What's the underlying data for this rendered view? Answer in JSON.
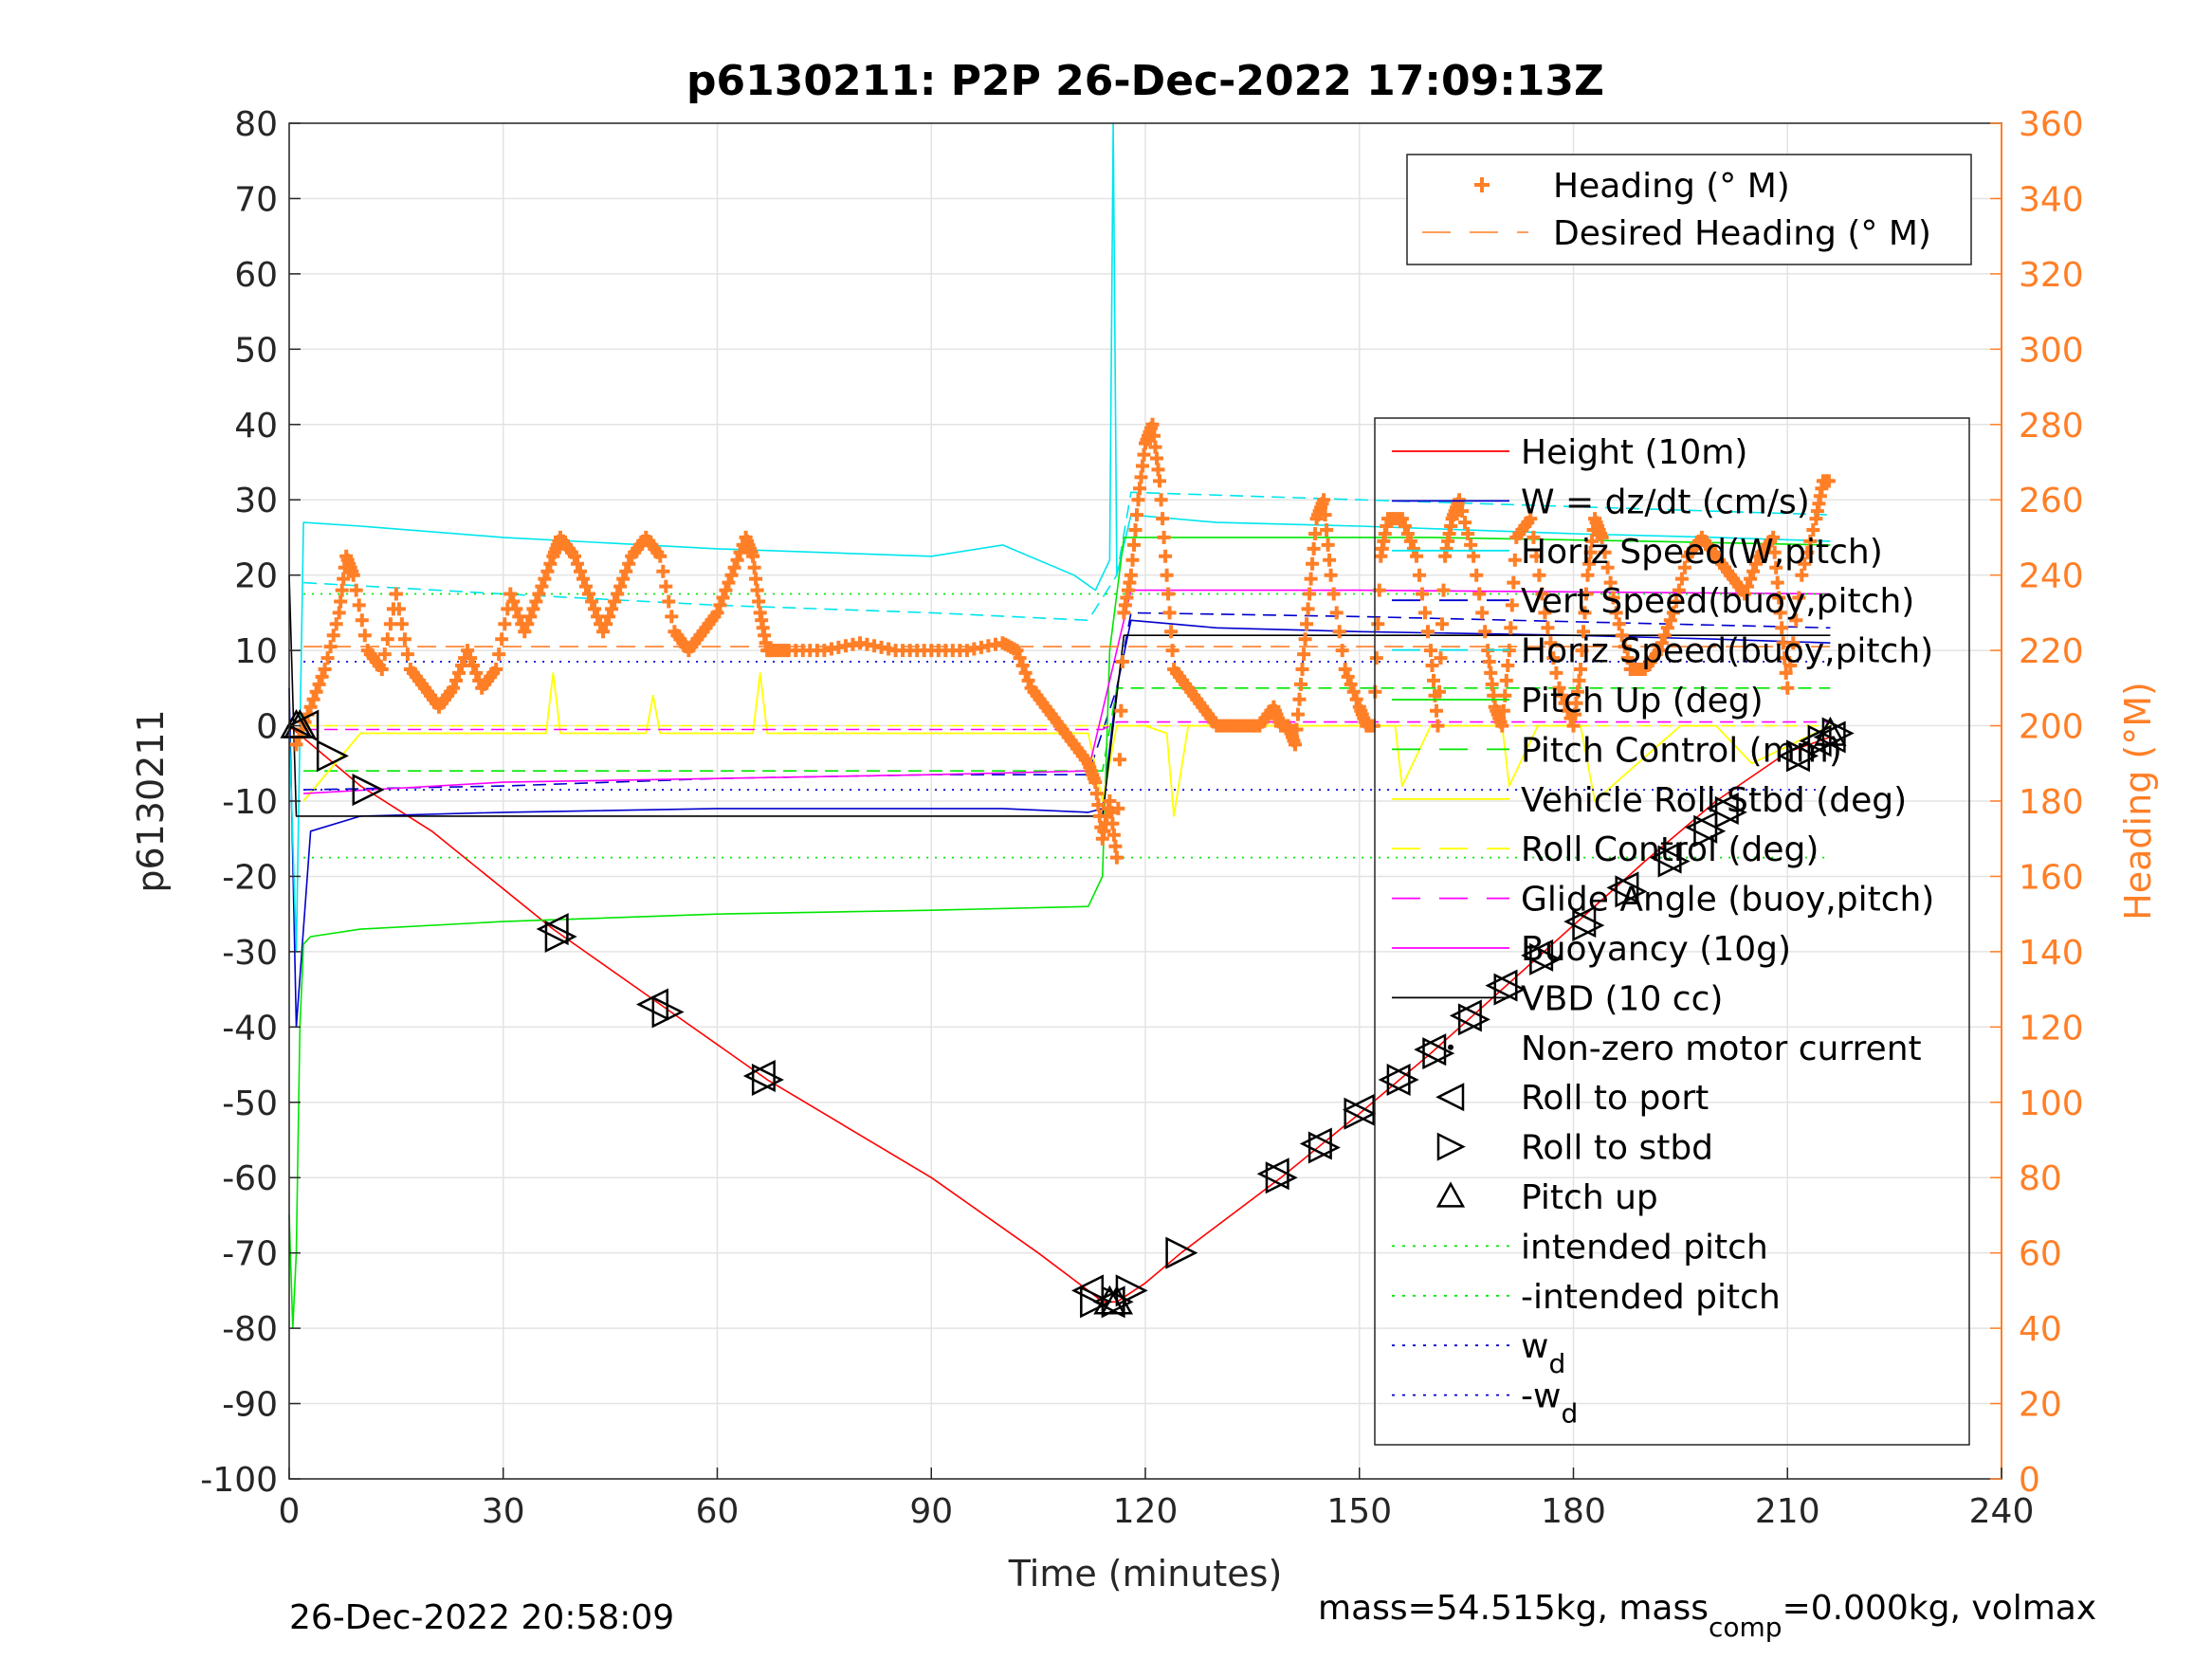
{
  "chart_data": {
    "type": "line",
    "title": "p6130211: P2P 26-Dec-2022 17:09:13Z",
    "xlabel": "Time (minutes)",
    "ylabel_left": "p6130211",
    "ylabel_right": "Heading (°M)",
    "xlim": [
      0,
      240
    ],
    "ylim_left": [
      -100,
      80
    ],
    "ylim_right": [
      0,
      360
    ],
    "x_ticks": [
      0,
      30,
      60,
      90,
      120,
      150,
      180,
      210,
      240
    ],
    "y_ticks_left": [
      80,
      70,
      60,
      50,
      40,
      30,
      20,
      10,
      0,
      -10,
      -20,
      -30,
      -40,
      -50,
      -60,
      -70,
      -80,
      -90,
      -100
    ],
    "y_ticks_right": [
      360,
      340,
      320,
      300,
      280,
      260,
      240,
      220,
      200,
      180,
      160,
      140,
      120,
      100,
      80,
      60,
      40,
      20,
      0
    ],
    "grid": true,
    "colors": {
      "height": "#ff0000",
      "w": "#0000cd",
      "horiz_speed_w": "#00e5ee",
      "vert_speed_buoy": "#0000cd",
      "horiz_speed_buoy": "#00e5ee",
      "pitch_up": "#00e600",
      "pitch_control": "#00e600",
      "roll_stbd": "#ffff00",
      "roll_control": "#ffff00",
      "glide_angle": "#ff00ff",
      "buoyancy": "#ff00ff",
      "vbd": "#000000",
      "heading": "#ff7f27",
      "intended_pitch": "#00e600",
      "wd": "#0000cd"
    },
    "legend_top": {
      "placement": "top-right",
      "entries": [
        "Heading (° M)",
        "Desired Heading (° M)"
      ]
    },
    "legend_main": {
      "placement": "right",
      "entries": [
        "Height (10m)",
        "W = dz/dt (cm/s)",
        "Horiz Speed(W,pitch)",
        "Vert Speed(buoy,pitch)",
        "Horiz Speed(buoy,pitch)",
        "Pitch Up (deg)",
        "Pitch Control (mm)",
        "Vehicle Roll Stbd (deg)",
        "Roll Control (deg)",
        "Glide Angle (buoy,pitch)",
        "Buoyancy (10g)",
        "VBD (10 cc)",
        "Non-zero motor current",
        "Roll to port",
        "Roll to stbd",
        "Pitch up",
        "intended pitch",
        "-intended pitch",
        "w",
        "-w"
      ],
      "subscript": "d"
    },
    "series": [
      {
        "key": "height",
        "x": [
          0,
          10,
          20,
          37,
          52,
          67,
          90,
          105,
          112,
          114,
          116,
          120,
          125,
          139,
          150,
          160,
          170,
          180,
          190,
          200,
          210,
          216
        ],
        "y": [
          0,
          -8,
          -14,
          -27,
          -37,
          -47,
          -60,
          -70,
          -75,
          -76.5,
          -76.5,
          -74,
          -70,
          -60,
          -51.5,
          -43.5,
          -35,
          -26.5,
          -18,
          -10,
          -3.5,
          -1.5
        ]
      },
      {
        "key": "w",
        "x": [
          0,
          1,
          3,
          10,
          30,
          60,
          90,
          100,
          112,
          114,
          116,
          118,
          130,
          150,
          180,
          200,
          216
        ],
        "y": [
          5,
          -40,
          -14,
          -12,
          -11.5,
          -11,
          -11,
          -11,
          -11.5,
          -11,
          5,
          14,
          13,
          12.5,
          12,
          11.5,
          11
        ]
      },
      {
        "key": "horiz_speed_w",
        "x": [
          0,
          1,
          2,
          10,
          30,
          60,
          90,
          100,
          110,
          113,
          115,
          115.5,
          116,
          118,
          130,
          150,
          180,
          200,
          216
        ],
        "y": [
          0,
          -30,
          27,
          26.5,
          25,
          23.5,
          22.5,
          24,
          20,
          18,
          22,
          80,
          20,
          28,
          27,
          26.5,
          25.5,
          25,
          24.5
        ]
      },
      {
        "key": "vert_speed_buoy",
        "x": [
          2,
          30,
          60,
          90,
          112,
          116,
          118,
          150,
          216
        ],
        "y": [
          -8.5,
          -8,
          -7,
          -6.5,
          -6.5,
          5,
          15,
          14.5,
          13
        ]
      },
      {
        "key": "horiz_speed_buoy",
        "x": [
          2,
          30,
          60,
          90,
          112,
          116,
          118,
          150,
          216
        ],
        "y": [
          19,
          17.5,
          16,
          15,
          14,
          20,
          31,
          30,
          28
        ]
      },
      {
        "key": "pitch_up",
        "x": [
          0,
          0.5,
          1,
          1.5,
          2,
          3,
          10,
          30,
          60,
          90,
          112,
          114,
          115,
          117,
          130,
          160,
          190,
          216
        ],
        "y": [
          -65,
          -80,
          -70,
          -40,
          -29,
          -28,
          -27,
          -26,
          -25,
          -24.5,
          -24,
          -20,
          10,
          25,
          25,
          25,
          24.5,
          24
        ]
      },
      {
        "key": "pitch_control",
        "x": [
          2,
          112,
          114,
          116,
          118,
          216
        ],
        "y": [
          -6,
          -6,
          -6,
          5,
          5,
          5
        ]
      },
      {
        "key": "roll_stbd",
        "x": [
          2,
          10,
          20,
          36,
          37,
          38,
          50,
          51,
          52,
          65,
          66,
          67,
          90,
          112,
          114,
          116,
          120,
          123,
          124,
          126,
          140,
          150,
          155,
          156,
          160,
          170,
          171,
          175,
          181,
          183,
          195,
          200,
          205,
          216
        ],
        "y": [
          -10,
          -1,
          -1,
          -1,
          7,
          -1,
          -1,
          4,
          -1,
          -1,
          7,
          -1,
          -1,
          -1,
          -10,
          0,
          0,
          -1,
          -12,
          0,
          0,
          0,
          0,
          -8,
          0,
          0,
          -8,
          0,
          0,
          -10,
          0,
          0,
          -5,
          0
        ]
      },
      {
        "key": "roll_control",
        "x": [
          2,
          216
        ],
        "y": [
          0,
          0
        ]
      },
      {
        "key": "glide_angle",
        "x": [
          2,
          112,
          114,
          116,
          118,
          216
        ],
        "y": [
          -0.5,
          -0.5,
          -0.5,
          0.5,
          0.5,
          0.5
        ]
      },
      {
        "key": "buoyancy",
        "x": [
          2,
          30,
          60,
          90,
          112,
          116,
          118,
          150,
          216
        ],
        "y": [
          -9,
          -7.5,
          -7,
          -6.5,
          -6,
          10,
          18,
          18,
          17.5
        ]
      },
      {
        "key": "vbd",
        "x": [
          0,
          1,
          112,
          113,
          114,
          117,
          216
        ],
        "y": [
          20,
          -12,
          -12,
          -12,
          -12,
          12,
          12
        ]
      },
      {
        "key": "intended_pitch",
        "x": [
          2,
          216
        ],
        "y": [
          17.5,
          17.5
        ]
      },
      {
        "key": "neg_intended_pitch",
        "x": [
          2,
          216
        ],
        "y": [
          -17.5,
          -17.5
        ]
      },
      {
        "key": "wd",
        "x": [
          2,
          216
        ],
        "y": [
          8.5,
          8.5
        ]
      },
      {
        "key": "neg_wd",
        "x": [
          2,
          216
        ],
        "y": [
          -8.5,
          -8.5
        ]
      },
      {
        "key": "heading",
        "axis": "right",
        "x": [
          1,
          3,
          5,
          7,
          8,
          9,
          11,
          13,
          15,
          17,
          19,
          21,
          23,
          25,
          27,
          29,
          31,
          33,
          35,
          37,
          38,
          40,
          42,
          44,
          46,
          48,
          50,
          52,
          54,
          56,
          58,
          60,
          62,
          64,
          65,
          66,
          67,
          68,
          70,
          75,
          80,
          85,
          90,
          95,
          100,
          102,
          104,
          106,
          108,
          110,
          112,
          113,
          114,
          115,
          116,
          117,
          118,
          119,
          120,
          121,
          122,
          123,
          124,
          126,
          128,
          130,
          132,
          134,
          136,
          138,
          139,
          140,
          141,
          142,
          143,
          144,
          145,
          146,
          148,
          150,
          151,
          152,
          153,
          154,
          156,
          158,
          160,
          161,
          162,
          163,
          164,
          166,
          168,
          169,
          170,
          171,
          172,
          174,
          176,
          178,
          180,
          181,
          182,
          183,
          184,
          186,
          188,
          190,
          192,
          194,
          196,
          198,
          200,
          202,
          204,
          206,
          208,
          209,
          210,
          212,
          214,
          215,
          216
        ],
        "y": [
          195,
          205,
          215,
          230,
          245,
          240,
          220,
          215,
          235,
          215,
          210,
          205,
          210,
          220,
          210,
          215,
          235,
          225,
          235,
          245,
          250,
          245,
          235,
          225,
          235,
          245,
          250,
          245,
          225,
          220,
          225,
          230,
          240,
          250,
          245,
          230,
          220,
          220,
          220,
          220,
          222,
          220,
          220,
          220,
          222,
          220,
          210,
          205,
          200,
          195,
          190,
          185,
          170,
          180,
          165,
          230,
          240,
          260,
          275,
          280,
          265,
          240,
          215,
          210,
          205,
          200,
          200,
          200,
          200,
          205,
          200,
          200,
          195,
          215,
          235,
          255,
          260,
          240,
          215,
          205,
          200,
          200,
          245,
          255,
          255,
          245,
          220,
          200,
          245,
          255,
          260,
          245,
          220,
          205,
          200,
          220,
          250,
          255,
          230,
          210,
          200,
          215,
          240,
          255,
          250,
          230,
          215,
          215,
          220,
          230,
          245,
          250,
          245,
          240,
          235,
          245,
          250,
          230,
          210,
          240,
          255,
          265,
          265
        ]
      },
      {
        "key": "desired_heading",
        "axis": "right",
        "x": [
          2,
          112,
          114,
          216
        ],
        "y": [
          221,
          221,
          221,
          221
        ]
      }
    ],
    "markers": {
      "roll_to_port": {
        "x": [
          2,
          37,
          51,
          66,
          112,
          115,
          138,
          144,
          150,
          155,
          160,
          165,
          170,
          175,
          181,
          187,
          193,
          198,
          201,
          211,
          214,
          216
        ],
        "y": [
          0,
          -27,
          -37,
          -46.5,
          -75,
          -76.5,
          -59.5,
          -55.5,
          -51,
          -47,
          -43,
          -38.5,
          -34.5,
          -30.5,
          -26,
          -21.5,
          -17.5,
          -13.5,
          -11,
          -4,
          -2,
          -1.5
        ]
      },
      "roll_to_stbd": {
        "x": [
          6,
          11,
          38,
          53,
          67,
          113,
          116,
          118,
          125,
          139,
          145,
          150,
          156,
          161,
          166,
          171,
          176,
          182,
          188,
          194,
          199,
          202,
          212,
          215,
          217
        ],
        "y": [
          -4,
          -8.5,
          -28,
          -38,
          -47,
          -76.5,
          -76.5,
          -75,
          -70,
          -60,
          -56,
          -51.5,
          -47,
          -43.5,
          -39,
          -35,
          -31,
          -26.5,
          -22,
          -18,
          -14,
          -11.5,
          -4,
          -2,
          -1
        ]
      },
      "pitch_up": {
        "x": [
          1,
          1.5,
          115,
          116,
          216
        ],
        "y": [
          0,
          0,
          -76.5,
          -76.5,
          -1
        ]
      }
    }
  },
  "footer": {
    "date": "26-Dec-2022 20:58:09",
    "mass_prefix": "mass=54.515kg, mass",
    "mass_sub": "comp",
    "mass_suffix": "=0.000kg, volmax"
  }
}
